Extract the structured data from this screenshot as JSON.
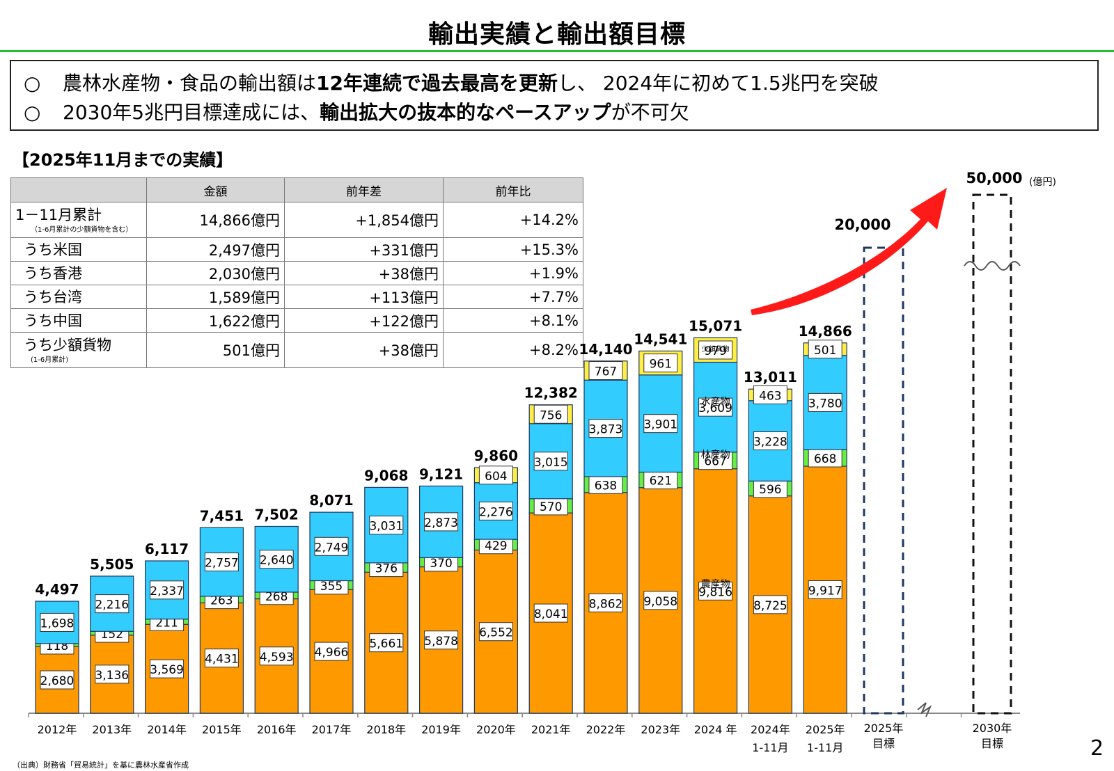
{
  "title": "輸出実績と輸出額目標",
  "summary": {
    "marker": "○",
    "line1": {
      "pre": "農林水産物・食品の輸出額は",
      "bold": "12年連続で過去最高を更新",
      "post": "し、 2024年に初めて1.5兆円を突破"
    },
    "line2": {
      "pre": "2030年5兆円目標達成には、",
      "bold": "輸出拡大の抜本的なペースアップ",
      "post": "が不可欠"
    }
  },
  "section_title": "【2025年11月までの実績】",
  "table": {
    "headers": [
      "",
      "金額",
      "前年差",
      "前年比"
    ],
    "rows": [
      {
        "label": "1－11月累計",
        "sub": "（1-6月累計の少額貨物を含む）",
        "amount": "14,866億円",
        "diff": "+1,854億円",
        "ratio": "+14.2%"
      },
      {
        "label": "うち米国",
        "sub": "",
        "amount": "2,497億円",
        "diff": "+331億円",
        "ratio": "+15.3%"
      },
      {
        "label": "うち香港",
        "sub": "",
        "amount": "2,030億円",
        "diff": "+38億円",
        "ratio": "+1.9%"
      },
      {
        "label": "うち台湾",
        "sub": "",
        "amount": "1,589億円",
        "diff": "+113億円",
        "ratio": "+7.7%"
      },
      {
        "label": "うち中国",
        "sub": "",
        "amount": "1,622億円",
        "diff": "+122億円",
        "ratio": "+8.1%"
      },
      {
        "label": "うち少額貨物",
        "sub": "(1-6月累計)",
        "amount": "501億円",
        "diff": "+38億円",
        "ratio": "+8.2%"
      }
    ]
  },
  "colors": {
    "agri": "#ff9900",
    "forest": "#66ee44",
    "fish": "#33ccff",
    "small": "#ffee44",
    "target_border": "#1f3860",
    "arrow": "#ff1a1a",
    "title_rule": "#22c02a"
  },
  "chart_data": {
    "type": "bar",
    "stacked": true,
    "unit": "(億円)",
    "categories": [
      "2012年",
      "2013年",
      "2014年",
      "2015年",
      "2016年",
      "2017年",
      "2018年",
      "2019年",
      "2020年",
      "2021年",
      "2022年",
      "2023年",
      "2024 年",
      "2024年\n1-11月",
      "2025年\n1-11月"
    ],
    "series": [
      {
        "key": "agri",
        "name": "農産物",
        "values": [
          2680,
          3136,
          3569,
          4431,
          4593,
          4966,
          5661,
          5878,
          6552,
          8041,
          8862,
          9058,
          9816,
          8725,
          9917
        ]
      },
      {
        "key": "forest",
        "name": "林産物",
        "values": [
          118,
          152,
          211,
          263,
          268,
          355,
          376,
          370,
          429,
          570,
          638,
          621,
          667,
          596,
          668
        ]
      },
      {
        "key": "fish",
        "name": "水産物",
        "values": [
          1698,
          2216,
          2337,
          2757,
          2640,
          2749,
          3031,
          2873,
          2276,
          3015,
          3873,
          3901,
          3609,
          3228,
          3780
        ]
      },
      {
        "key": "small",
        "name": "少額貨物",
        "values": [
          null,
          null,
          null,
          null,
          null,
          null,
          null,
          null,
          604,
          756,
          767,
          961,
          979,
          463,
          501
        ]
      }
    ],
    "totals": [
      "4,497",
      "5,505",
      "6,117",
      "7,451",
      "7,502",
      "8,071",
      "9,068",
      "9,121",
      "9,860",
      "12,382",
      "14,140",
      "14,541",
      "15,071",
      "13,011",
      "14,866"
    ],
    "targets": [
      {
        "label": "2025年\n目標",
        "value": 20000,
        "value_label": "20,000"
      },
      {
        "label": "2030年\n目標",
        "value": 50000,
        "value_label": "50,000"
      }
    ]
  },
  "source": "（出典）財務省「貿易統計」を基に農林水産省作成",
  "page_number": "2"
}
